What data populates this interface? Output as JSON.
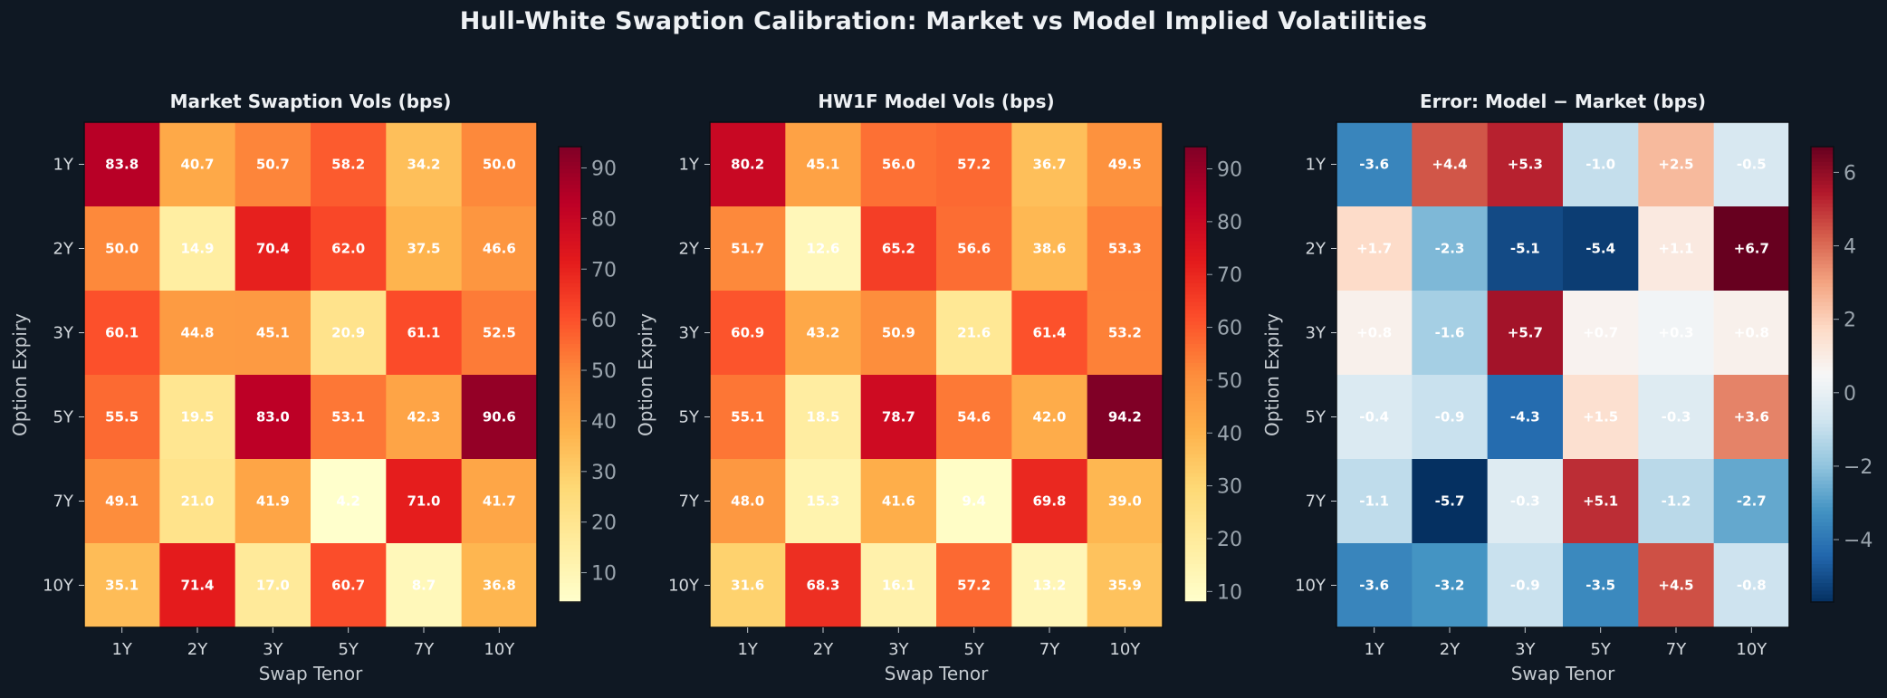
{
  "figure": {
    "title": "Hull-White Swaption Calibration: Market vs Model Implied Volatilities"
  },
  "chart_data": [
    {
      "type": "heatmap",
      "title": "Market Swaption Vols (bps)",
      "xlabel": "Swap Tenor",
      "ylabel": "Option Expiry",
      "x_categories": [
        "1Y",
        "2Y",
        "3Y",
        "5Y",
        "7Y",
        "10Y"
      ],
      "y_categories": [
        "1Y",
        "2Y",
        "3Y",
        "5Y",
        "7Y",
        "10Y"
      ],
      "values": [
        [
          83.8,
          40.7,
          50.7,
          58.2,
          34.2,
          50.0
        ],
        [
          50.0,
          14.9,
          70.4,
          62.0,
          37.5,
          46.6
        ],
        [
          60.1,
          44.8,
          45.1,
          20.9,
          61.1,
          52.5
        ],
        [
          55.5,
          19.5,
          83.0,
          53.1,
          42.3,
          90.6
        ],
        [
          49.1,
          21.0,
          41.9,
          4.2,
          71.0,
          41.7
        ],
        [
          35.1,
          71.4,
          17.0,
          60.7,
          8.7,
          36.8
        ]
      ],
      "labels": [
        [
          "83.8",
          "40.7",
          "50.7",
          "58.2",
          "34.2",
          "50.0"
        ],
        [
          "50.0",
          "14.9",
          "70.4",
          "62.0",
          "37.5",
          "46.6"
        ],
        [
          "60.1",
          "44.8",
          "45.1",
          "20.9",
          "61.1",
          "52.5"
        ],
        [
          "55.5",
          "19.5",
          "83.0",
          "53.1",
          "42.3",
          "90.6"
        ],
        [
          "49.1",
          "21.0",
          "41.9",
          "4.2",
          "71.0",
          "41.7"
        ],
        [
          "35.1",
          "71.4",
          "17.0",
          "60.7",
          "8.7",
          "36.8"
        ]
      ],
      "colormap": "YlOrRd",
      "vmin": 4.2,
      "vmax": 94.2,
      "colorbar_ticks": [
        10,
        20,
        30,
        40,
        50,
        60,
        70,
        80,
        90
      ]
    },
    {
      "type": "heatmap",
      "title": "HW1F Model Vols (bps)",
      "xlabel": "Swap Tenor",
      "ylabel": "Option Expiry",
      "x_categories": [
        "1Y",
        "2Y",
        "3Y",
        "5Y",
        "7Y",
        "10Y"
      ],
      "y_categories": [
        "1Y",
        "2Y",
        "3Y",
        "5Y",
        "7Y",
        "10Y"
      ],
      "values": [
        [
          80.2,
          45.1,
          56.0,
          57.2,
          36.7,
          49.5
        ],
        [
          51.7,
          12.6,
          65.2,
          56.6,
          38.6,
          53.3
        ],
        [
          60.9,
          43.2,
          50.9,
          21.6,
          61.4,
          53.2
        ],
        [
          55.1,
          18.5,
          78.7,
          54.6,
          42.0,
          94.2
        ],
        [
          48.0,
          15.3,
          41.6,
          9.4,
          69.8,
          39.0
        ],
        [
          31.6,
          68.3,
          16.1,
          57.2,
          13.2,
          35.9
        ]
      ],
      "labels": [
        [
          "80.2",
          "45.1",
          "56.0",
          "57.2",
          "36.7",
          "49.5"
        ],
        [
          "51.7",
          "12.6",
          "65.2",
          "56.6",
          "38.6",
          "53.3"
        ],
        [
          "60.9",
          "43.2",
          "50.9",
          "21.6",
          "61.4",
          "53.2"
        ],
        [
          "55.1",
          "18.5",
          "78.7",
          "54.6",
          "42.0",
          "94.2"
        ],
        [
          "48.0",
          "15.3",
          "41.6",
          "9.4",
          "69.8",
          "39.0"
        ],
        [
          "31.6",
          "68.3",
          "16.1",
          "57.2",
          "13.2",
          "35.9"
        ]
      ],
      "colormap": "YlOrRd",
      "vmin": 8.0,
      "vmax": 94.2,
      "colorbar_ticks": [
        10,
        20,
        30,
        40,
        50,
        60,
        70,
        80,
        90
      ]
    },
    {
      "type": "heatmap",
      "title": "Error: Model − Market (bps)",
      "xlabel": "Swap Tenor",
      "ylabel": "Option Expiry",
      "x_categories": [
        "1Y",
        "2Y",
        "3Y",
        "5Y",
        "7Y",
        "10Y"
      ],
      "y_categories": [
        "1Y",
        "2Y",
        "3Y",
        "5Y",
        "7Y",
        "10Y"
      ],
      "values": [
        [
          -3.6,
          4.4,
          5.3,
          -1.0,
          2.5,
          -0.5
        ],
        [
          1.7,
          -2.3,
          -5.1,
          -5.4,
          1.1,
          6.7
        ],
        [
          0.8,
          -1.6,
          5.7,
          0.7,
          0.3,
          0.8
        ],
        [
          -0.4,
          -0.9,
          -4.3,
          1.5,
          -0.3,
          3.6
        ],
        [
          -1.1,
          -5.7,
          -0.3,
          5.1,
          -1.2,
          -2.7
        ],
        [
          -3.6,
          -3.2,
          -0.9,
          -3.5,
          4.5,
          -0.8
        ]
      ],
      "labels": [
        [
          "-3.6",
          "+4.4",
          "+5.3",
          "-1.0",
          "+2.5",
          "-0.5"
        ],
        [
          "+1.7",
          "-2.3",
          "-5.1",
          "-5.4",
          "+1.1",
          "+6.7"
        ],
        [
          "+0.8",
          "-1.6",
          "+5.7",
          "+0.7",
          "+0.3",
          "+0.8"
        ],
        [
          "-0.4",
          "-0.9",
          "-4.3",
          "+1.5",
          "-0.3",
          "+3.6"
        ],
        [
          "-1.1",
          "-5.7",
          "-0.3",
          "+5.1",
          "-1.2",
          "-2.7"
        ],
        [
          "-3.6",
          "-3.2",
          "-0.9",
          "-3.5",
          "+4.5",
          "-0.8"
        ]
      ],
      "colormap": "RdBu_r",
      "vmin": -5.7,
      "vmax": 6.7,
      "colorbar_ticks": [
        -4,
        -2,
        0,
        2,
        4,
        6
      ],
      "colorbar_tick_labels": [
        "−4",
        "−2",
        "0",
        "2",
        "4",
        "6"
      ]
    }
  ]
}
